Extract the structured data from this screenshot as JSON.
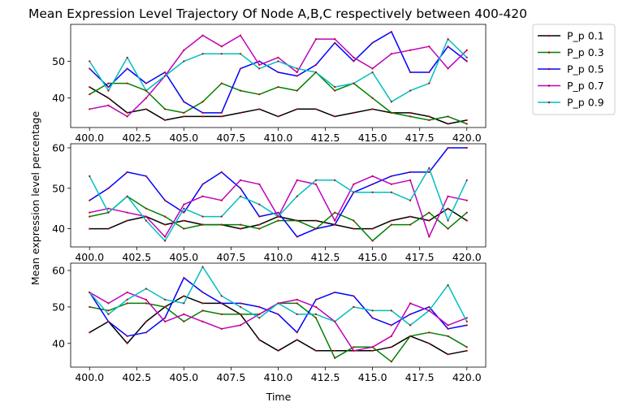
{
  "figure": {
    "title": "Mean Expression Level Trajectory Of Node A,B,C respectively between 400-420",
    "xlabel": "Time",
    "ylabel": "Mean expression level percentage"
  },
  "chart_data": [
    {
      "type": "line",
      "title": "Mean Expression Level Trajectory Of Node A,B,C respectively between 400-420",
      "xlabel": "",
      "ylabel": "",
      "xlim": [
        399,
        421
      ],
      "ylim": [
        32,
        60
      ],
      "xticks": [
        400.0,
        402.5,
        405.0,
        407.5,
        410.0,
        412.5,
        415.0,
        417.5,
        420.0
      ],
      "xtick_labels": [
        "400.0",
        "402.5",
        "405.0",
        "407.5",
        "410.0",
        "412.5",
        "415.0",
        "417.5",
        "420.0"
      ],
      "yticks": [
        40,
        50
      ],
      "ytick_labels": [
        "40",
        "50"
      ],
      "grid": false,
      "legend": "outside-right",
      "x": [
        400,
        401,
        402,
        403,
        404,
        405,
        406,
        407,
        408,
        409,
        410,
        411,
        412,
        413,
        414,
        415,
        416,
        417,
        418,
        419,
        420
      ],
      "series": [
        {
          "name": "P_p 0.1",
          "color": "#000000",
          "values": [
            43,
            40,
            36,
            37,
            34,
            35,
            35,
            35,
            36,
            37,
            35,
            37,
            37,
            35,
            36,
            37,
            36,
            36,
            35,
            33,
            34
          ]
        },
        {
          "name": "P_p 0.3",
          "color": "#008000",
          "values": [
            41,
            44,
            44,
            42,
            37,
            36,
            39,
            44,
            42,
            41,
            43,
            42,
            47,
            42,
            44,
            40,
            36,
            35,
            34,
            35,
            33
          ]
        },
        {
          "name": "P_p 0.5",
          "color": "#0000ff",
          "values": [
            48,
            43,
            48,
            44,
            47,
            39,
            36,
            36,
            48,
            50,
            47,
            46,
            49,
            55,
            50,
            55,
            58,
            47,
            47,
            54,
            50
          ]
        },
        {
          "name": "P_p 0.7",
          "color": "#bf00bf",
          "values": [
            37,
            38,
            35,
            40,
            46,
            53,
            57,
            54,
            57,
            49,
            51,
            47,
            56,
            56,
            51,
            48,
            52,
            53,
            54,
            48,
            53
          ]
        },
        {
          "name": "P_p 0.9",
          "color": "#00bfbf",
          "values": [
            50,
            42,
            51,
            42,
            46,
            50,
            52,
            52,
            52,
            48,
            50,
            48,
            47,
            43,
            44,
            47,
            39,
            42,
            44,
            56,
            51
          ]
        }
      ]
    },
    {
      "type": "line",
      "xlabel": "",
      "ylabel": "Mean expression level percentage",
      "xlim": [
        399,
        421
      ],
      "ylim": [
        35.5,
        61
      ],
      "xticks": [
        400.0,
        402.5,
        405.0,
        407.5,
        410.0,
        412.5,
        415.0,
        417.5,
        420.0
      ],
      "xtick_labels": [
        "400.0",
        "402.5",
        "405.0",
        "407.5",
        "410.0",
        "412.5",
        "415.0",
        "417.5",
        "420.0"
      ],
      "yticks": [
        40,
        50,
        60
      ],
      "ytick_labels": [
        "40",
        "50",
        "60"
      ],
      "grid": false,
      "x": [
        400,
        401,
        402,
        403,
        404,
        405,
        406,
        407,
        408,
        409,
        410,
        411,
        412,
        413,
        414,
        415,
        416,
        417,
        418,
        419,
        420
      ],
      "series": [
        {
          "name": "P_p 0.1",
          "color": "#000000",
          "values": [
            40,
            40,
            42,
            43,
            41,
            42,
            41,
            41,
            40,
            41,
            43,
            42,
            42,
            41,
            40,
            40,
            42,
            43,
            42,
            45,
            42
          ]
        },
        {
          "name": "P_p 0.3",
          "color": "#008000",
          "values": [
            43,
            44,
            48,
            45,
            43,
            40,
            41,
            41,
            41,
            40,
            42,
            42,
            40,
            44,
            42,
            37,
            41,
            41,
            44,
            40,
            44
          ]
        },
        {
          "name": "P_p 0.5",
          "color": "#0000ff",
          "values": [
            47,
            50,
            54,
            53,
            47,
            44,
            51,
            54,
            50,
            43,
            44,
            38,
            40,
            41,
            49,
            51,
            53,
            54,
            54,
            60,
            60
          ]
        },
        {
          "name": "P_p 0.7",
          "color": "#bf00bf",
          "values": [
            44,
            45,
            44,
            43,
            38,
            46,
            48,
            47,
            52,
            51,
            43,
            52,
            51,
            42,
            51,
            53,
            51,
            52,
            38,
            48,
            47
          ]
        },
        {
          "name": "P_p 0.9",
          "color": "#00bfbf",
          "values": [
            53,
            44,
            48,
            42,
            37,
            45,
            43,
            43,
            48,
            46,
            43,
            48,
            52,
            52,
            49,
            49,
            49,
            47,
            55,
            42,
            52
          ]
        }
      ]
    },
    {
      "type": "line",
      "xlabel": "Time",
      "ylabel": "",
      "xlim": [
        399,
        421
      ],
      "ylim": [
        33.5,
        62
      ],
      "xticks": [
        400.0,
        402.5,
        405.0,
        407.5,
        410.0,
        412.5,
        415.0,
        417.5,
        420.0
      ],
      "xtick_labels": [
        "400.0",
        "402.5",
        "405.0",
        "407.5",
        "410.0",
        "412.5",
        "415.0",
        "417.5",
        "420.0"
      ],
      "yticks": [
        40,
        50,
        60
      ],
      "ytick_labels": [
        "40",
        "50",
        "60"
      ],
      "grid": false,
      "x": [
        400,
        401,
        402,
        403,
        404,
        405,
        406,
        407,
        408,
        409,
        410,
        411,
        412,
        413,
        414,
        415,
        416,
        417,
        418,
        419,
        420
      ],
      "series": [
        {
          "name": "P_p 0.1",
          "color": "#000000",
          "values": [
            43,
            46,
            40,
            46,
            50,
            53,
            51,
            51,
            48,
            41,
            38,
            41,
            38,
            38,
            38,
            38,
            39,
            42,
            40,
            37,
            38
          ]
        },
        {
          "name": "P_p 0.3",
          "color": "#008000",
          "values": [
            50,
            49,
            51,
            51,
            50,
            46,
            49,
            48,
            48,
            48,
            51,
            51,
            47,
            36,
            39,
            39,
            35,
            42,
            43,
            42,
            39
          ]
        },
        {
          "name": "P_p 0.5",
          "color": "#0000ff",
          "values": [
            54,
            46,
            42,
            43,
            47,
            58,
            54,
            51,
            51,
            50,
            48,
            43,
            52,
            54,
            53,
            47,
            45,
            48,
            50,
            44,
            45
          ]
        },
        {
          "name": "P_p 0.7",
          "color": "#bf00bf",
          "values": [
            54,
            51,
            54,
            52,
            46,
            48,
            46,
            44,
            45,
            48,
            51,
            52,
            50,
            46,
            38,
            39,
            42,
            51,
            49,
            45,
            47
          ]
        },
        {
          "name": "P_p 0.9",
          "color": "#00bfbf",
          "values": [
            54,
            48,
            52,
            55,
            52,
            51,
            61,
            53,
            50,
            47,
            51,
            48,
            48,
            46,
            50,
            49,
            49,
            45,
            49,
            56,
            46
          ]
        }
      ]
    }
  ]
}
